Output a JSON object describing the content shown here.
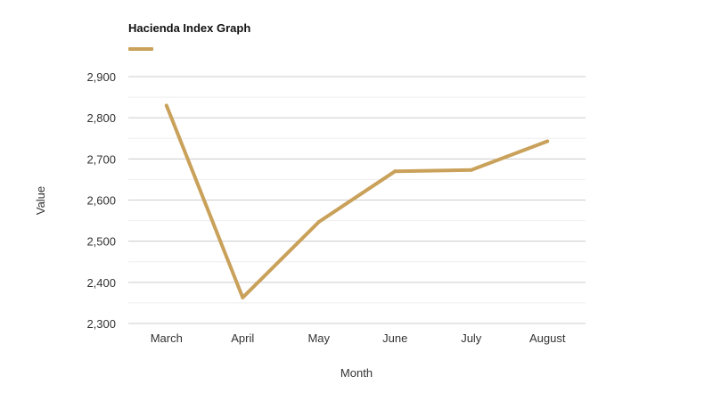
{
  "chart_data": {
    "type": "line",
    "title": "Hacienda Index Graph",
    "xlabel": "Month",
    "ylabel": "Value",
    "categories": [
      "March",
      "April",
      "May",
      "June",
      "July",
      "August"
    ],
    "series": [
      {
        "values": [
          2830,
          2363,
          2547,
          2670,
          2673,
          2743
        ],
        "color": "#c9a15a"
      }
    ],
    "ylim": [
      2300,
      2900
    ],
    "yticks": [
      2300,
      2400,
      2500,
      2600,
      2700,
      2800,
      2900
    ],
    "ytick_labels": [
      "2,300",
      "2,400",
      "2,500",
      "2,600",
      "2,700",
      "2,800",
      "2,900"
    ],
    "grid": true,
    "legend": "top-left"
  },
  "colors": {
    "gridline": "#cccccc",
    "minor_gridline": "#eeeeee"
  }
}
